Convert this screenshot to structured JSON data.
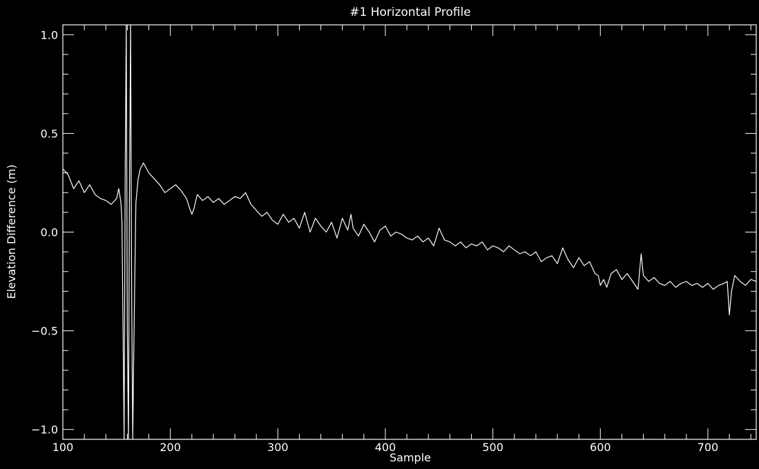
{
  "chart_data": {
    "type": "line",
    "title": "#1 Horizontal Profile",
    "xlabel": "Sample",
    "ylabel": "Elevation Difference (m)",
    "xlim": [
      100,
      745
    ],
    "ylim": [
      -1.05,
      1.05
    ],
    "x_ticks": [
      100,
      200,
      300,
      400,
      500,
      600,
      700
    ],
    "x_tick_labels": [
      "100",
      "200",
      "300",
      "400",
      "500",
      "600",
      "700"
    ],
    "y_ticks": [
      -1.0,
      -0.5,
      0.0,
      0.5,
      1.0
    ],
    "y_tick_labels": [
      "−1.0",
      "−0.5",
      "0.0",
      "0.5",
      "1.0"
    ],
    "grid": false,
    "background_color": "#000000",
    "line_color": "#ffffff",
    "series": [
      {
        "x": [
          100,
          105,
          110,
          115,
          120,
          125,
          130,
          135,
          140,
          145,
          150,
          152,
          154,
          155,
          156,
          157,
          158,
          159,
          160,
          161,
          162,
          163,
          164,
          165,
          166,
          167,
          168,
          170,
          172,
          175,
          180,
          185,
          190,
          195,
          200,
          205,
          210,
          215,
          218,
          220,
          222,
          225,
          230,
          235,
          240,
          245,
          250,
          255,
          260,
          265,
          270,
          275,
          280,
          285,
          290,
          295,
          300,
          305,
          310,
          315,
          320,
          325,
          330,
          335,
          340,
          345,
          350,
          355,
          360,
          365,
          368,
          370,
          375,
          380,
          385,
          390,
          395,
          400,
          405,
          410,
          415,
          420,
          425,
          430,
          435,
          440,
          445,
          450,
          455,
          460,
          465,
          470,
          475,
          480,
          485,
          490,
          495,
          500,
          505,
          510,
          515,
          520,
          525,
          530,
          535,
          540,
          545,
          550,
          555,
          560,
          565,
          570,
          575,
          580,
          585,
          590,
          595,
          598,
          600,
          603,
          606,
          610,
          615,
          620,
          625,
          630,
          635,
          638,
          640,
          645,
          650,
          655,
          660,
          665,
          670,
          675,
          680,
          685,
          690,
          695,
          700,
          705,
          710,
          715,
          718,
          720,
          722,
          725,
          730,
          735,
          740,
          745
        ],
        "y": [
          0.32,
          0.29,
          0.22,
          0.26,
          0.2,
          0.24,
          0.19,
          0.17,
          0.16,
          0.14,
          0.17,
          0.22,
          0.15,
          0.05,
          -0.5,
          -1.05,
          0.3,
          1.05,
          -0.5,
          -1.05,
          0.2,
          1.05,
          -0.3,
          -1.05,
          -0.6,
          -0.2,
          0.15,
          0.27,
          0.32,
          0.35,
          0.3,
          0.27,
          0.24,
          0.2,
          0.22,
          0.24,
          0.21,
          0.17,
          0.12,
          0.09,
          0.12,
          0.19,
          0.16,
          0.18,
          0.15,
          0.17,
          0.14,
          0.16,
          0.18,
          0.17,
          0.2,
          0.14,
          0.11,
          0.08,
          0.1,
          0.06,
          0.04,
          0.09,
          0.05,
          0.07,
          0.02,
          0.1,
          0.0,
          0.07,
          0.03,
          0.0,
          0.05,
          -0.03,
          0.07,
          0.01,
          0.09,
          0.02,
          -0.02,
          0.04,
          0.0,
          -0.05,
          0.01,
          0.03,
          -0.02,
          0.0,
          -0.01,
          -0.03,
          -0.04,
          -0.02,
          -0.05,
          -0.03,
          -0.07,
          0.02,
          -0.04,
          -0.05,
          -0.07,
          -0.05,
          -0.08,
          -0.06,
          -0.07,
          -0.05,
          -0.09,
          -0.07,
          -0.08,
          -0.1,
          -0.07,
          -0.09,
          -0.11,
          -0.1,
          -0.12,
          -0.1,
          -0.15,
          -0.13,
          -0.12,
          -0.16,
          -0.08,
          -0.14,
          -0.18,
          -0.13,
          -0.17,
          -0.15,
          -0.21,
          -0.22,
          -0.27,
          -0.24,
          -0.28,
          -0.21,
          -0.19,
          -0.24,
          -0.21,
          -0.25,
          -0.29,
          -0.11,
          -0.22,
          -0.25,
          -0.23,
          -0.26,
          -0.27,
          -0.25,
          -0.28,
          -0.26,
          -0.25,
          -0.27,
          -0.26,
          -0.28,
          -0.26,
          -0.29,
          -0.27,
          -0.26,
          -0.25,
          -0.42,
          -0.3,
          -0.22,
          -0.25,
          -0.27,
          -0.24,
          -0.25
        ]
      }
    ]
  }
}
